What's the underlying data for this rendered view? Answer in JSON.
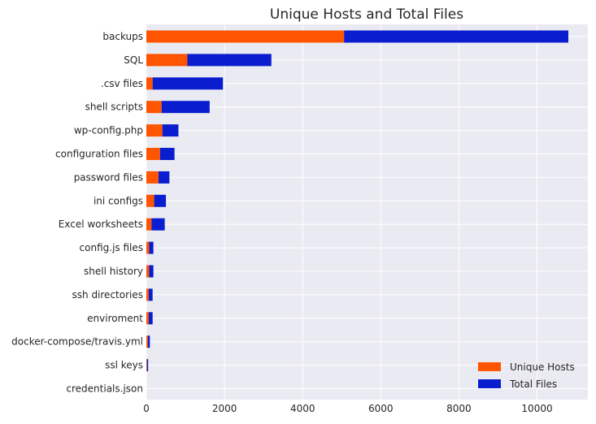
{
  "chart_data": {
    "type": "bar",
    "orientation": "horizontal",
    "stacked": true,
    "title": "Unique Hosts and Total Files",
    "xlabel": "",
    "ylabel": "",
    "xlim": [
      0,
      11300
    ],
    "xticks": [
      0,
      2000,
      4000,
      6000,
      8000,
      10000
    ],
    "grid": true,
    "legend_position": "lower-right",
    "categories": [
      "backups",
      "SQL",
      ".csv files",
      "shell scripts",
      "wp-config.php",
      "configuration files",
      "password files",
      "ini configs",
      "Excel worksheets",
      "config.js files",
      "shell history",
      "ssh directories",
      "enviroment",
      "docker-compose/travis.yml",
      "ssl keys",
      "credentials.json"
    ],
    "series": [
      {
        "name": "Unique Hosts",
        "color": "#ff5500",
        "values": [
          5060,
          1050,
          160,
          390,
          410,
          350,
          310,
          200,
          130,
          70,
          70,
          60,
          60,
          40,
          15,
          0
        ]
      },
      {
        "name": "Total Files",
        "color": "#0a1ecf",
        "values": [
          5740,
          2150,
          1800,
          1230,
          410,
          370,
          280,
          300,
          340,
          110,
          110,
          100,
          100,
          50,
          30,
          0
        ]
      }
    ]
  }
}
